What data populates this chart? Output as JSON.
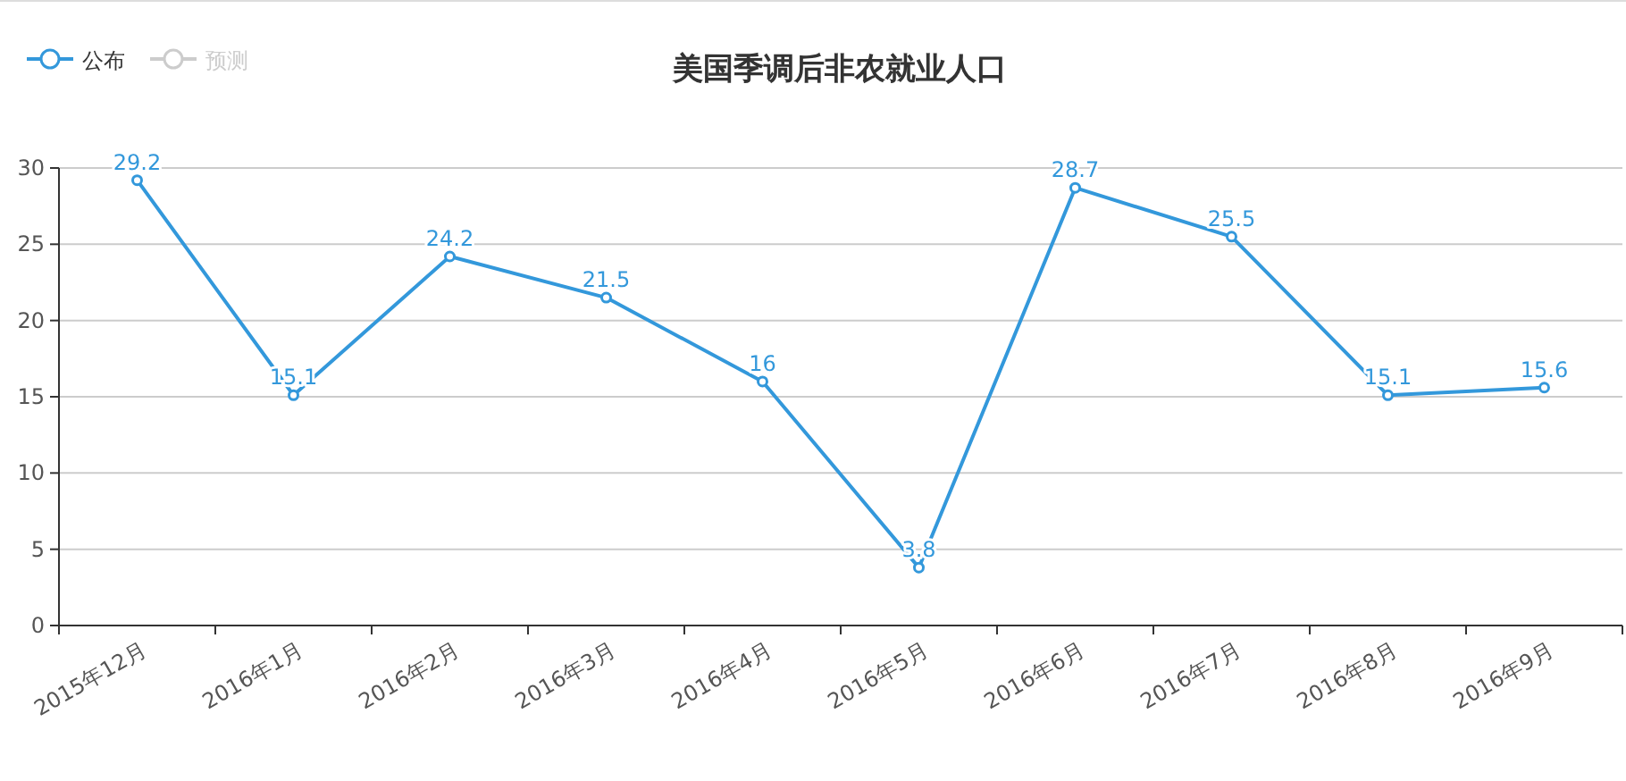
{
  "chart_data": {
    "type": "line",
    "title": "美国季调后非农就业人口",
    "categories": [
      "2015年12月",
      "2016年1月",
      "2016年2月",
      "2016年3月",
      "2016年4月",
      "2016年5月",
      "2016年6月",
      "2016年7月",
      "2016年8月",
      "2016年9月"
    ],
    "series": [
      {
        "name": "公布",
        "color": "#3398db",
        "values": [
          29.2,
          15.1,
          24.2,
          21.5,
          16,
          3.8,
          28.7,
          25.5,
          15.1,
          15.6
        ]
      },
      {
        "name": "预测",
        "color": "#cccccc",
        "values": [
          null,
          null,
          null,
          null,
          null,
          null,
          null,
          null,
          null,
          null
        ]
      }
    ],
    "ylim": [
      0,
      30
    ],
    "yticks": [
      0,
      5,
      10,
      15,
      20,
      25,
      30
    ],
    "grid": "y",
    "legend": "top left",
    "marker": "circle",
    "data_labels": true
  }
}
